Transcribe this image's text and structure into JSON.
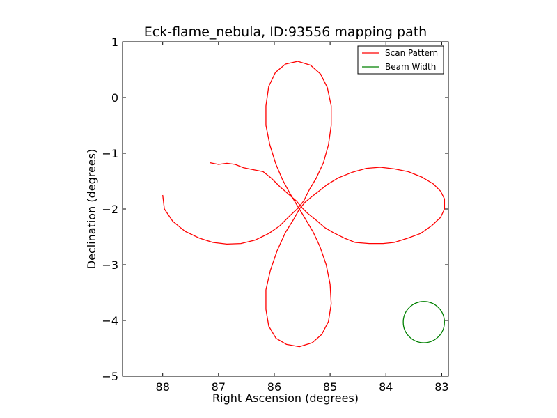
{
  "chart_data": {
    "type": "line",
    "title": "Eck-flame_nebula, ID:93556 mapping path",
    "xlabel": "Right Ascension (degrees)",
    "ylabel": "Declination (degrees)",
    "xlim": [
      88.72,
      82.88
    ],
    "ylim": [
      -5,
      1
    ],
    "x_axis_inverted": true,
    "xticks": [
      88,
      87,
      86,
      85,
      84,
      83
    ],
    "yticks": [
      1,
      0,
      -1,
      -2,
      -3,
      -4,
      -5
    ],
    "xtick_labels": [
      "88",
      "87",
      "86",
      "85",
      "84",
      "83"
    ],
    "ytick_labels": [
      "1",
      "0",
      "−1",
      "−2",
      "−3",
      "−4",
      "−5"
    ],
    "grid": false,
    "legend": {
      "position": "top-right",
      "entries": [
        {
          "label": "Scan Pattern",
          "color": "#ff0000"
        },
        {
          "label": "Beam Width",
          "color": "#008000"
        }
      ]
    },
    "series": [
      {
        "name": "Scan Pattern",
        "color": "#ff0000",
        "points": [
          [
            87.15,
            -1.17
          ],
          [
            87.0,
            -1.2
          ],
          [
            86.85,
            -1.18
          ],
          [
            86.7,
            -1.2
          ],
          [
            86.55,
            -1.26
          ],
          [
            86.35,
            -1.3
          ],
          [
            86.2,
            -1.33
          ],
          [
            86.05,
            -1.45
          ],
          [
            85.9,
            -1.6
          ],
          [
            85.75,
            -1.73
          ],
          [
            85.6,
            -1.86
          ],
          [
            85.5,
            -1.98
          ],
          [
            85.4,
            -2.08
          ],
          [
            85.25,
            -2.2
          ],
          [
            85.1,
            -2.33
          ],
          [
            84.95,
            -2.42
          ],
          [
            84.75,
            -2.52
          ],
          [
            84.55,
            -2.6
          ],
          [
            84.3,
            -2.62
          ],
          [
            84.05,
            -2.62
          ],
          [
            83.85,
            -2.6
          ],
          [
            83.6,
            -2.52
          ],
          [
            83.38,
            -2.44
          ],
          [
            83.18,
            -2.3
          ],
          [
            83.02,
            -2.15
          ],
          [
            82.95,
            -2.0
          ],
          [
            82.95,
            -1.82
          ],
          [
            83.02,
            -1.68
          ],
          [
            83.15,
            -1.55
          ],
          [
            83.35,
            -1.43
          ],
          [
            83.6,
            -1.33
          ],
          [
            83.85,
            -1.28
          ],
          [
            84.1,
            -1.25
          ],
          [
            84.35,
            -1.27
          ],
          [
            84.6,
            -1.34
          ],
          [
            84.85,
            -1.44
          ],
          [
            85.05,
            -1.56
          ],
          [
            85.2,
            -1.68
          ],
          [
            85.33,
            -1.78
          ],
          [
            85.45,
            -1.88
          ],
          [
            85.55,
            -2.0
          ],
          [
            85.65,
            -2.18
          ],
          [
            85.8,
            -2.42
          ],
          [
            85.95,
            -2.75
          ],
          [
            86.07,
            -3.1
          ],
          [
            86.15,
            -3.45
          ],
          [
            86.15,
            -3.8
          ],
          [
            86.1,
            -4.1
          ],
          [
            85.97,
            -4.32
          ],
          [
            85.78,
            -4.43
          ],
          [
            85.55,
            -4.47
          ],
          [
            85.32,
            -4.4
          ],
          [
            85.15,
            -4.25
          ],
          [
            85.03,
            -4.02
          ],
          [
            84.98,
            -3.7
          ],
          [
            85.0,
            -3.35
          ],
          [
            85.07,
            -3.0
          ],
          [
            85.18,
            -2.68
          ],
          [
            85.3,
            -2.42
          ],
          [
            85.43,
            -2.2
          ],
          [
            85.52,
            -2.05
          ],
          [
            85.6,
            -1.92
          ],
          [
            85.72,
            -1.72
          ],
          [
            85.85,
            -1.48
          ],
          [
            85.97,
            -1.2
          ],
          [
            86.08,
            -0.85
          ],
          [
            86.15,
            -0.5
          ],
          [
            86.15,
            -0.15
          ],
          [
            86.1,
            0.2
          ],
          [
            85.98,
            0.45
          ],
          [
            85.8,
            0.6
          ],
          [
            85.58,
            0.65
          ],
          [
            85.35,
            0.58
          ],
          [
            85.17,
            0.42
          ],
          [
            85.05,
            0.18
          ],
          [
            84.98,
            -0.15
          ],
          [
            84.98,
            -0.5
          ],
          [
            85.03,
            -0.85
          ],
          [
            85.12,
            -1.17
          ],
          [
            85.25,
            -1.45
          ],
          [
            85.37,
            -1.65
          ],
          [
            85.47,
            -1.85
          ],
          [
            85.57,
            -1.98
          ],
          [
            85.72,
            -2.12
          ],
          [
            85.9,
            -2.3
          ],
          [
            86.1,
            -2.44
          ],
          [
            86.35,
            -2.56
          ],
          [
            86.6,
            -2.62
          ],
          [
            86.85,
            -2.63
          ],
          [
            87.1,
            -2.6
          ],
          [
            87.35,
            -2.52
          ],
          [
            87.6,
            -2.4
          ],
          [
            87.82,
            -2.22
          ],
          [
            87.97,
            -2.0
          ],
          [
            88.0,
            -1.75
          ]
        ]
      }
    ],
    "beam": {
      "name": "Beam Width",
      "color": "#008000",
      "center": [
        83.32,
        -4.03
      ],
      "radius": 0.37
    }
  }
}
